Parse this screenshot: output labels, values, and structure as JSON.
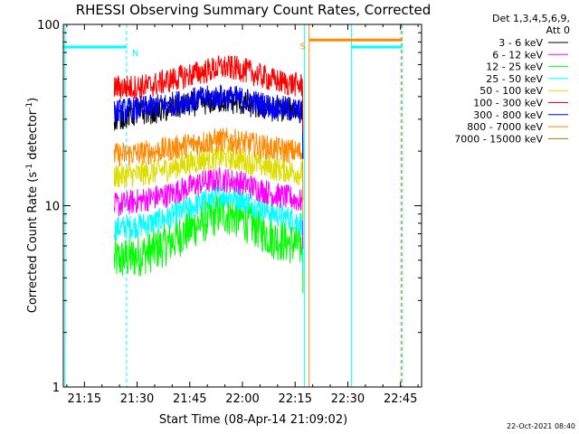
{
  "chart_data": {
    "type": "line",
    "title": "RHESSI Observing Summary Count Rates, Corrected",
    "xlabel": "Start Time (08-Apr-14 21:09:02)",
    "ylabel_main": "Corrected Count Rate (s",
    "ylabel_sup1": "-1",
    "ylabel_mid": " detector",
    "ylabel_sup2": "-1",
    "ylabel_end": ")",
    "x_unit": "minutes since 21:09:02",
    "xlim": [
      0,
      102
    ],
    "ylim": [
      1,
      100
    ],
    "yscale": "log",
    "x_ticks": [
      {
        "t": 6,
        "label": "21:15"
      },
      {
        "t": 21,
        "label": "21:30"
      },
      {
        "t": 36,
        "label": "21:45"
      },
      {
        "t": 51,
        "label": "22:00"
      },
      {
        "t": 66,
        "label": "22:15"
      },
      {
        "t": 81,
        "label": "22:30"
      },
      {
        "t": 96,
        "label": "22:45"
      }
    ],
    "y_ticks": [
      {
        "v": 1,
        "label": "1"
      },
      {
        "v": 10,
        "label": "10"
      },
      {
        "v": 100,
        "label": "100"
      }
    ],
    "legend_header": [
      "Det 1,3,4,5,6,9,",
      "Att 0"
    ],
    "legend_position": "right",
    "grid": false,
    "observation_window": [
      14.5,
      68.2
    ],
    "series": [
      {
        "name": "3 - 6 keV",
        "color": "#000000",
        "x": [
          14.5,
          20,
          25,
          30,
          35,
          40,
          45,
          50,
          55,
          60,
          65,
          68
        ],
        "y": [
          30,
          32,
          33,
          34,
          36,
          37,
          38,
          37,
          35,
          34,
          34,
          33
        ]
      },
      {
        "name": "6 - 12 keV",
        "color": "#ff00ff",
        "x": [
          14.5,
          20,
          25,
          30,
          35,
          40,
          45,
          50,
          55,
          60,
          65,
          68
        ],
        "y": [
          10,
          10.5,
          11,
          11.5,
          12.5,
          13.5,
          14,
          13.5,
          12.5,
          11.5,
          11,
          10.5
        ]
      },
      {
        "name": "12 - 25 keV",
        "color": "#00ff00",
        "x": [
          14.5,
          20,
          25,
          30,
          35,
          40,
          45,
          50,
          55,
          60,
          65,
          68
        ],
        "y": [
          5,
          5.2,
          5.6,
          6.2,
          7.2,
          8.2,
          9.2,
          8.6,
          7.6,
          6.6,
          6.2,
          6
        ]
      },
      {
        "name": "25 - 50 keV",
        "color": "#00ffff",
        "x": [
          14.5,
          20,
          25,
          30,
          35,
          40,
          45,
          50,
          55,
          60,
          65,
          68
        ],
        "y": [
          7.5,
          7.7,
          8,
          8.6,
          9.5,
          10.5,
          11.5,
          11,
          10,
          9,
          8.5,
          8
        ]
      },
      {
        "name": "50 - 100 keV",
        "color": "#dddd00",
        "x": [
          14.5,
          20,
          25,
          30,
          35,
          40,
          45,
          50,
          55,
          60,
          65,
          68
        ],
        "y": [
          14.5,
          14.8,
          15.2,
          16,
          17,
          18,
          18.5,
          18,
          17,
          16,
          15.5,
          15
        ]
      },
      {
        "name": "100 - 300 keV",
        "color": "#ff0000",
        "x": [
          14.5,
          20,
          25,
          30,
          35,
          40,
          45,
          50,
          55,
          60,
          65,
          68
        ],
        "y": [
          45,
          45,
          46,
          49,
          52,
          55,
          58,
          57,
          53,
          49,
          47,
          46
        ]
      },
      {
        "name": "300 - 800 keV",
        "color": "#0000ff",
        "x": [
          14.5,
          20,
          25,
          30,
          35,
          40,
          45,
          50,
          55,
          60,
          65,
          68
        ],
        "y": [
          33,
          34,
          35,
          36,
          38,
          39,
          40,
          39,
          37,
          35,
          34,
          33
        ]
      },
      {
        "name": "800 - 7000 keV",
        "color": "#ff8800",
        "x": [
          14.5,
          20,
          25,
          30,
          35,
          40,
          45,
          50,
          55,
          60,
          65,
          68
        ],
        "y": [
          19,
          19.3,
          19.8,
          20.5,
          21.5,
          22.5,
          23,
          22.5,
          21.5,
          20.5,
          20,
          19.5
        ]
      },
      {
        "name": "7000 - 15000 keV",
        "color": "#888800",
        "x": [],
        "y": []
      }
    ],
    "flags": [
      {
        "label": "N",
        "color": "#00ffff",
        "level": 75,
        "segments": [
          [
            0,
            18
          ],
          [
            82,
            96.5
          ]
        ]
      },
      {
        "label": "S",
        "color": "#ff8800",
        "level": 82,
        "segments": [
          [
            70,
            96.5
          ]
        ]
      }
    ],
    "flag_lines": [
      {
        "t": 0.5,
        "color": "#00ffff",
        "style": "solid"
      },
      {
        "t": 18,
        "color": "#00ffff",
        "style": "dashed"
      },
      {
        "t": 68.6,
        "color": "#00ffff",
        "style": "solid"
      },
      {
        "t": 70.0,
        "color": "#ff8800",
        "style": "solid"
      },
      {
        "t": 82,
        "color": "#00ffff",
        "style": "solid"
      },
      {
        "t": 96.5,
        "color": "#00ffff",
        "style": "dashed"
      },
      {
        "t": 96.2,
        "color": "#ff8800",
        "style": "dashed"
      }
    ],
    "footer": "22-Oct-2021 08:40"
  }
}
